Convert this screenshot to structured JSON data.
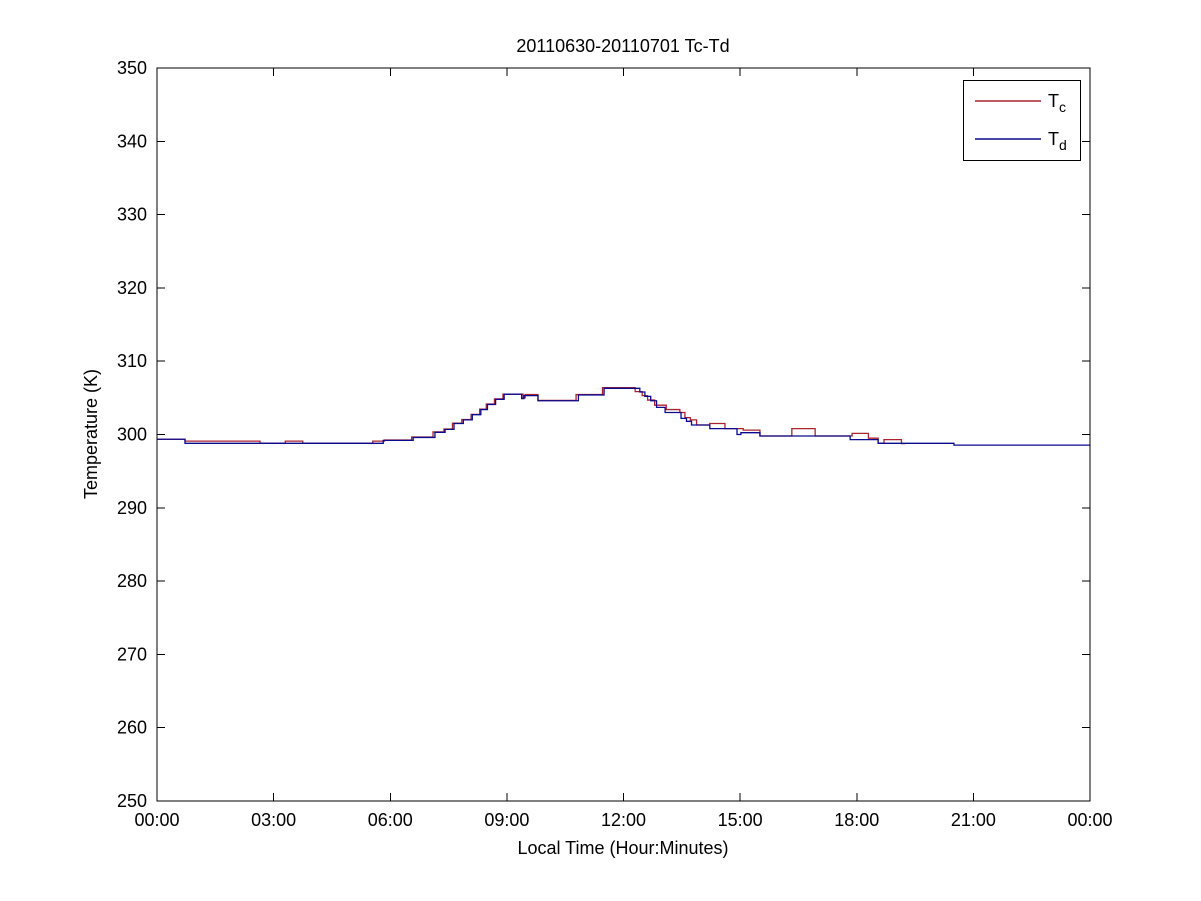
{
  "window": {
    "background": "#ffffff"
  },
  "chart_data": {
    "type": "line",
    "subtype": "step-post",
    "title": "20110630-20110701 Tc-Td",
    "xlabel": "Local Time (Hour:Minutes)",
    "ylabel": "Temperature (K)",
    "xlim": [
      0,
      24
    ],
    "ylim": [
      250,
      350
    ],
    "grid": false,
    "legend_position": "top-right",
    "x_ticks_hours": [
      0,
      3,
      6,
      9,
      12,
      15,
      18,
      21,
      24
    ],
    "x_tick_labels": [
      "00:00",
      "03:00",
      "06:00",
      "09:00",
      "12:00",
      "15:00",
      "18:00",
      "21:00",
      "00:00"
    ],
    "y_ticks": [
      250,
      260,
      270,
      280,
      290,
      300,
      310,
      320,
      330,
      340,
      350
    ],
    "axis_color": "#000000",
    "series": [
      {
        "name": "Tc",
        "color": "#aa2430",
        "end_hour": 19.25,
        "points": [
          [
            0.0,
            299.35
          ],
          [
            0.72,
            299.1
          ],
          [
            2.65,
            298.8
          ],
          [
            3.3,
            299.1
          ],
          [
            3.75,
            298.8
          ],
          [
            5.55,
            299.1
          ],
          [
            5.85,
            299.25
          ],
          [
            6.55,
            299.65
          ],
          [
            7.1,
            300.35
          ],
          [
            7.38,
            300.75
          ],
          [
            7.6,
            301.55
          ],
          [
            7.84,
            302.05
          ],
          [
            8.08,
            302.75
          ],
          [
            8.3,
            303.45
          ],
          [
            8.47,
            304.15
          ],
          [
            8.68,
            304.85
          ],
          [
            8.9,
            305.5
          ],
          [
            9.42,
            305.0
          ],
          [
            9.47,
            305.45
          ],
          [
            9.8,
            304.65
          ],
          [
            10.78,
            305.45
          ],
          [
            11.46,
            306.4
          ],
          [
            12.3,
            305.85
          ],
          [
            12.48,
            305.3
          ],
          [
            12.62,
            304.7
          ],
          [
            12.8,
            304.0
          ],
          [
            13.1,
            303.4
          ],
          [
            13.45,
            303.0
          ],
          [
            13.58,
            302.3
          ],
          [
            13.72,
            302.0
          ],
          [
            13.88,
            301.3
          ],
          [
            14.22,
            301.5
          ],
          [
            14.61,
            300.8
          ],
          [
            15.08,
            300.6
          ],
          [
            15.51,
            299.8
          ],
          [
            16.33,
            300.8
          ],
          [
            16.93,
            299.8
          ],
          [
            17.88,
            300.15
          ],
          [
            18.3,
            299.5
          ],
          [
            18.55,
            298.8
          ],
          [
            18.7,
            299.3
          ],
          [
            19.15,
            298.75
          ]
        ]
      },
      {
        "name": "Td",
        "color": "#0a0a8c",
        "end_hour": 24,
        "points": [
          [
            0.0,
            299.35
          ],
          [
            0.72,
            298.8
          ],
          [
            5.82,
            299.2
          ],
          [
            6.59,
            299.6
          ],
          [
            7.15,
            300.3
          ],
          [
            7.41,
            300.7
          ],
          [
            7.64,
            301.5
          ],
          [
            7.88,
            302.0
          ],
          [
            8.11,
            302.7
          ],
          [
            8.33,
            303.4
          ],
          [
            8.5,
            304.1
          ],
          [
            8.71,
            304.8
          ],
          [
            8.93,
            305.5
          ],
          [
            9.38,
            304.9
          ],
          [
            9.44,
            305.3
          ],
          [
            9.8,
            304.6
          ],
          [
            10.84,
            305.4
          ],
          [
            11.5,
            306.3
          ],
          [
            12.42,
            305.8
          ],
          [
            12.55,
            305.2
          ],
          [
            12.7,
            304.6
          ],
          [
            12.85,
            303.7
          ],
          [
            13.07,
            303.0
          ],
          [
            13.48,
            302.2
          ],
          [
            13.62,
            301.8
          ],
          [
            13.75,
            301.3
          ],
          [
            14.22,
            300.8
          ],
          [
            14.92,
            300.0
          ],
          [
            15.02,
            300.25
          ],
          [
            15.51,
            299.8
          ],
          [
            17.83,
            299.3
          ],
          [
            18.55,
            298.8
          ],
          [
            20.5,
            298.55
          ],
          [
            24.0,
            298.55
          ]
        ]
      }
    ]
  },
  "legend": {
    "entries": [
      {
        "main": "T",
        "sub": "c",
        "series": "Tc",
        "color": "#aa2430"
      },
      {
        "main": "T",
        "sub": "d",
        "series": "Td",
        "color": "#0a0a8c"
      }
    ]
  }
}
